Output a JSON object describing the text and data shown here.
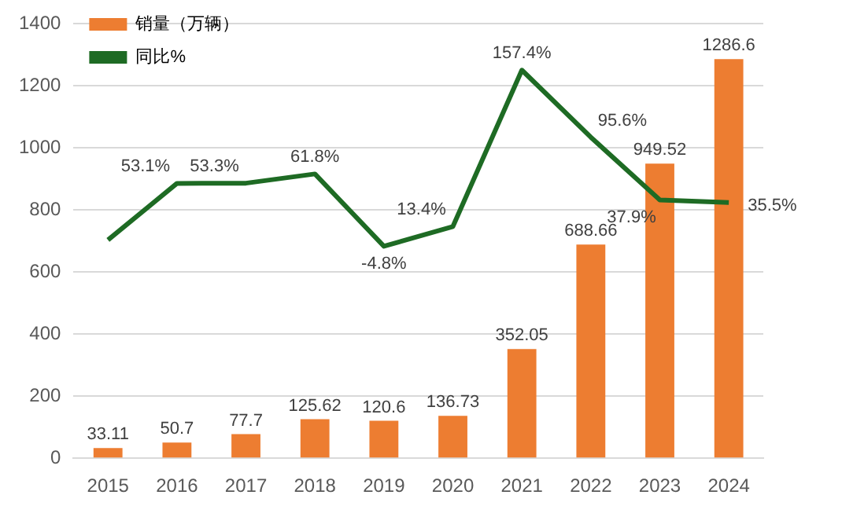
{
  "chart_data": {
    "type": "bar",
    "categories": [
      "2015",
      "2016",
      "2017",
      "2018",
      "2019",
      "2020",
      "2021",
      "2022",
      "2023",
      "2024"
    ],
    "series": [
      {
        "name": "销量（万辆）",
        "color": "#ed7d31",
        "values": [
          33.11,
          50.7,
          77.7,
          125.62,
          120.6,
          136.73,
          352.05,
          688.66,
          949.52,
          1286.6
        ],
        "data_labels": true
      },
      {
        "name": "同比%",
        "type": "line",
        "axis": "y2",
        "color": "#1e6b24",
        "values": [
          1,
          53.1,
          53.3,
          61.8,
          -4.8,
          13.4,
          157.4,
          95.6,
          37.9,
          35.5
        ],
        "value_labels": [
          null,
          "53.1%",
          "53.3%",
          "61.8%",
          "-4.8%",
          "13.4%",
          "157.4%",
          "95.6%",
          "37.9%",
          "35.5%"
        ]
      }
    ],
    "ylim": [
      0,
      1400
    ],
    "yticks": [
      0,
      200,
      400,
      600,
      800,
      1000,
      1200,
      1400
    ],
    "y2lim": [
      -200,
      200
    ],
    "grid": "y",
    "legend": "top left",
    "marker": "none"
  }
}
